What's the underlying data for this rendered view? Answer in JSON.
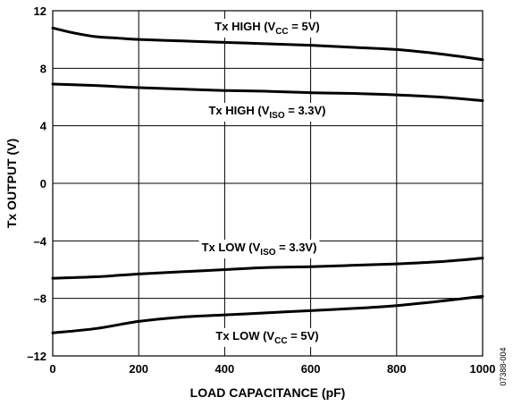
{
  "chart_data": {
    "type": "line",
    "xlabel": "LOAD CAPACITANCE (pF)",
    "ylabel": "Tx OUTPUT (V)",
    "xlim": [
      0,
      1000
    ],
    "ylim": [
      -12,
      12
    ],
    "x_ticks": [
      "0",
      "200",
      "400",
      "600",
      "800",
      "1000"
    ],
    "y_ticks": [
      "12",
      "8",
      "4",
      "0",
      "–4",
      "–8",
      "–12"
    ],
    "grid": true,
    "series": [
      {
        "name": "Tx HIGH (VCC = 5V)",
        "label_main": "Tx HIGH (V",
        "label_sub": "CC",
        "label_tail": " = 5V)",
        "points": [
          [
            0,
            10.8
          ],
          [
            50,
            10.45
          ],
          [
            100,
            10.2
          ],
          [
            150,
            10.1
          ],
          [
            200,
            10.0
          ],
          [
            300,
            9.9
          ],
          [
            400,
            9.8
          ],
          [
            500,
            9.7
          ],
          [
            600,
            9.6
          ],
          [
            700,
            9.45
          ],
          [
            800,
            9.3
          ],
          [
            900,
            9.0
          ],
          [
            1000,
            8.6
          ]
        ]
      },
      {
        "name": "Tx HIGH (VISO = 3.3V)",
        "label_main": "Tx HIGH (V",
        "label_sub": "ISO",
        "label_tail": " = 3.3V)",
        "points": [
          [
            0,
            6.9
          ],
          [
            100,
            6.8
          ],
          [
            200,
            6.65
          ],
          [
            300,
            6.55
          ],
          [
            400,
            6.45
          ],
          [
            500,
            6.4
          ],
          [
            600,
            6.3
          ],
          [
            700,
            6.25
          ],
          [
            800,
            6.15
          ],
          [
            900,
            6.0
          ],
          [
            1000,
            5.75
          ]
        ]
      },
      {
        "name": "Tx LOW (VISO = 3.3V)",
        "label_main": "Tx LOW (V",
        "label_sub": "ISO",
        "label_tail": " = 3.3V)",
        "points": [
          [
            0,
            -6.6
          ],
          [
            100,
            -6.5
          ],
          [
            200,
            -6.3
          ],
          [
            300,
            -6.15
          ],
          [
            400,
            -6.0
          ],
          [
            500,
            -5.85
          ],
          [
            600,
            -5.8
          ],
          [
            700,
            -5.7
          ],
          [
            800,
            -5.6
          ],
          [
            900,
            -5.45
          ],
          [
            1000,
            -5.2
          ]
        ]
      },
      {
        "name": "Tx LOW (VCC = 5V)",
        "label_main": "Tx LOW (V",
        "label_sub": "CC",
        "label_tail": " = 5V)",
        "points": [
          [
            0,
            -10.4
          ],
          [
            100,
            -10.1
          ],
          [
            200,
            -9.6
          ],
          [
            300,
            -9.3
          ],
          [
            400,
            -9.15
          ],
          [
            500,
            -9.0
          ],
          [
            600,
            -8.85
          ],
          [
            700,
            -8.7
          ],
          [
            800,
            -8.5
          ],
          [
            900,
            -8.2
          ],
          [
            1000,
            -7.85
          ]
        ]
      }
    ]
  },
  "figure_id": "07388-004"
}
